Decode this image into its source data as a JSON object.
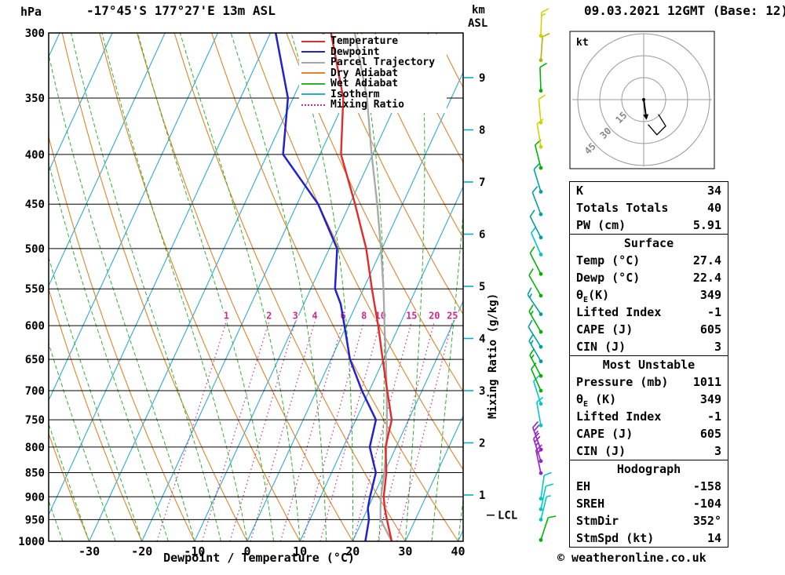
{
  "header": {
    "pressure_unit": "hPa",
    "station": "-17°45'S 177°27'E 13m ASL",
    "alt_unit_top": "km",
    "alt_unit_bottom": "ASL",
    "run": "09.03.2021 12GMT (Base: 12)"
  },
  "footer": {
    "xlabel": "Dewpoint / Temperature (°C)",
    "copyright": "© weatheronline.co.uk"
  },
  "side_labels": {
    "mixing_ratio_axis": "Mixing Ratio (g/kg)",
    "lcl": "LCL"
  },
  "legend": [
    {
      "label": "Temperature",
      "color": "#e32a2a",
      "dash": "solid"
    },
    {
      "label": "Dewpoint",
      "color": "#2222cc",
      "dash": "solid"
    },
    {
      "label": "Parcel Trajectory",
      "color": "#a8a8a8",
      "dash": "solid"
    },
    {
      "label": "Dry Adiabat",
      "color": "#e08428",
      "dash": "solid"
    },
    {
      "label": "Wet Adiabat",
      "color": "#2eb22e",
      "dash": "solid"
    },
    {
      "label": "Isotherm",
      "color": "#2aabd8",
      "dash": "solid"
    },
    {
      "label": "Mixing Ratio",
      "color": "#cc2a8c",
      "dash": "dotted"
    }
  ],
  "hodograph": {
    "unit": "kt",
    "rings": [
      15,
      30,
      45
    ],
    "storm_motion": {
      "dir_deg": 352,
      "speed_kt": 14
    },
    "trace_kt": [
      [
        10,
        -10
      ],
      [
        15,
        -18
      ],
      [
        9,
        -24
      ],
      [
        3,
        -17
      ]
    ]
  },
  "table": {
    "sections": [
      {
        "header": null,
        "rows": [
          [
            "K",
            "34"
          ],
          [
            "Totals Totals",
            "40"
          ],
          [
            "PW (cm)",
            "5.91"
          ]
        ]
      },
      {
        "header": "Surface",
        "rows": [
          [
            "Temp (°C)",
            "27.4"
          ],
          [
            "Dewp (°C)",
            "22.4"
          ],
          [
            "θ_E(K)",
            "349"
          ],
          [
            "Lifted Index",
            "-1"
          ],
          [
            "CAPE (J)",
            "605"
          ],
          [
            "CIN (J)",
            "3"
          ]
        ]
      },
      {
        "header": "Most Unstable",
        "rows": [
          [
            "Pressure (mb)",
            "1011"
          ],
          [
            "θ_E (K)",
            "349"
          ],
          [
            "Lifted Index",
            "-1"
          ],
          [
            "CAPE (J)",
            "605"
          ],
          [
            "CIN (J)",
            "3"
          ]
        ]
      },
      {
        "header": "Hodograph",
        "rows": [
          [
            "EH",
            "-158"
          ],
          [
            "SREH",
            "-104"
          ],
          [
            "StmDir",
            "352°"
          ],
          [
            "StmSpd (kt)",
            "14"
          ]
        ]
      }
    ]
  },
  "chart_data": {
    "type": "skew-t-log-p",
    "title": "-17°45'S 177°27'E 13m ASL",
    "pressure_axis_ticks": [
      300,
      350,
      400,
      450,
      500,
      550,
      600,
      650,
      700,
      750,
      800,
      850,
      900,
      950,
      1000
    ],
    "temp_axis_ticks": [
      -30,
      -20,
      -10,
      0,
      10,
      20,
      30,
      40
    ],
    "km_ticks": [
      1,
      2,
      3,
      4,
      5,
      6,
      7,
      8,
      9
    ],
    "mixing_ratio_lines_gkg": [
      1,
      2,
      3,
      4,
      6,
      8,
      10,
      15,
      20,
      25
    ],
    "isotherm_step_c": 10,
    "dry_adiabat_step_c": 10,
    "wet_adiabat_step_c": 5,
    "lcl_hpa": 940,
    "pressure_hpa": [
      1000,
      950,
      925,
      900,
      850,
      800,
      750,
      700,
      650,
      600,
      570,
      550,
      500,
      450,
      400,
      350,
      300
    ],
    "temperature_c": [
      27.4,
      24.6,
      23.2,
      22.0,
      20.4,
      18.0,
      16.8,
      13.4,
      9.8,
      6.0,
      3.4,
      1.6,
      -3.0,
      -9.0,
      -16.0,
      -20.5,
      -28.5
    ],
    "dewpoint_c": [
      22.4,
      21.2,
      20.0,
      19.4,
      18.4,
      15.0,
      13.8,
      8.6,
      3.6,
      -0.4,
      -3.0,
      -5.4,
      -8.5,
      -16.0,
      -27.0,
      -31.0,
      -39.0
    ],
    "parcel_c": [
      27.4,
      23.4,
      22.4,
      21.5,
      20.0,
      18.2,
      15.9,
      13.3,
      10.4,
      7.2,
      5.2,
      3.8,
      -0.2,
      -4.8,
      -10.2,
      -16.0,
      -24.0
    ],
    "colors": {
      "temperature": "#e32a2a",
      "dewpoint": "#2222cc",
      "parcel": "#a8a8a8",
      "dry_adiabat": "#e08428",
      "wet_adiabat": "#2eb22e",
      "isotherm": "#2aabd8",
      "mixing_ratio": "#cc2a8c",
      "grid": "#000000",
      "km_tick": "#00b0c8"
    },
    "winds": [
      {
        "p": 997,
        "spd": 10,
        "ang": 18,
        "color": "#00b400"
      },
      {
        "p": 950,
        "spd": 8,
        "ang": 14,
        "color": "#00c8c8"
      },
      {
        "p": 927,
        "spd": 10,
        "ang": 12,
        "color": "#00c8c8"
      },
      {
        "p": 904,
        "spd": 10,
        "ang": 8,
        "color": "#00c8c8"
      },
      {
        "p": 851,
        "spd": 20,
        "ang": -12,
        "color": "#9820c8"
      },
      {
        "p": 827,
        "spd": 25,
        "ang": -18,
        "color": "#9820c8"
      },
      {
        "p": 805,
        "spd": 25,
        "ang": -20,
        "color": "#9820c8"
      },
      {
        "p": 760,
        "spd": 10,
        "ang": -10,
        "color": "#00c8c8"
      },
      {
        "p": 722,
        "spd": 10,
        "ang": -18,
        "color": "#00c8c8"
      },
      {
        "p": 700,
        "spd": 12,
        "ang": -24,
        "color": "#00b400"
      },
      {
        "p": 676,
        "spd": 15,
        "ang": -28,
        "color": "#00b400"
      },
      {
        "p": 653,
        "spd": 15,
        "ang": -30,
        "color": "#00a0a0"
      },
      {
        "p": 631,
        "spd": 12,
        "ang": -32,
        "color": "#00a0a0"
      },
      {
        "p": 609,
        "spd": 15,
        "ang": -30,
        "color": "#00b400"
      },
      {
        "p": 584,
        "spd": 15,
        "ang": -34,
        "color": "#00a0a0"
      },
      {
        "p": 559,
        "spd": 12,
        "ang": -30,
        "color": "#00b400"
      },
      {
        "p": 531,
        "spd": 10,
        "ang": -27,
        "color": "#00b400"
      },
      {
        "p": 507,
        "spd": 10,
        "ang": -24,
        "color": "#00c8c8"
      },
      {
        "p": 487,
        "spd": 12,
        "ang": -27,
        "color": "#00a0a0"
      },
      {
        "p": 461,
        "spd": 12,
        "ang": -21,
        "color": "#00a0a0"
      },
      {
        "p": 437,
        "spd": 10,
        "ang": -17,
        "color": "#00a0a0"
      },
      {
        "p": 413,
        "spd": 10,
        "ang": -14,
        "color": "#00b400"
      },
      {
        "p": 393,
        "spd": 14,
        "ang": -9,
        "color": "#d2d200"
      },
      {
        "p": 371,
        "spd": 12,
        "ang": -5,
        "color": "#d2d200"
      },
      {
        "p": 344,
        "spd": 12,
        "ang": -2,
        "color": "#00b400"
      },
      {
        "p": 320,
        "spd": 10,
        "ang": 4,
        "color": "#b4b400"
      },
      {
        "p": 302,
        "spd": 18,
        "ang": 2,
        "color": "#d2d200"
      }
    ]
  }
}
